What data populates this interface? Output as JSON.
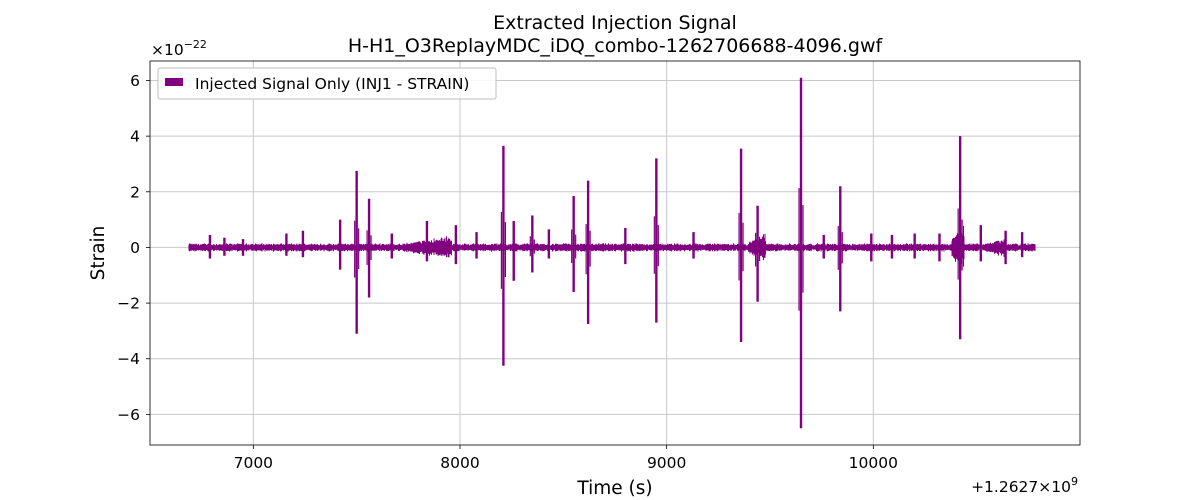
{
  "chart_data": {
    "type": "line",
    "title": "Extracted Injection Signal",
    "subtitle": "H-H1_O3ReplayMDC_iDQ_combo-1262706688-4096.gwf",
    "xlabel": "Time (s)",
    "ylabel": "Strain",
    "x_offset_label": "+1.2627×10",
    "x_offset_exponent": "9",
    "y_scale_label": "×10",
    "y_scale_exponent": "−22",
    "xlim": [
      6500,
      11000
    ],
    "ylim": [
      -7.1,
      6.7
    ],
    "x_ticks": [
      7000,
      8000,
      9000,
      10000
    ],
    "x_tick_labels": [
      "7000",
      "8000",
      "9000",
      "10000"
    ],
    "y_ticks": [
      -6,
      -4,
      -2,
      0,
      2,
      4,
      6
    ],
    "y_tick_labels": [
      "−6",
      "−4",
      "−2",
      "0",
      "2",
      "4",
      "6"
    ],
    "grid": true,
    "legend_position": "top-left",
    "x_range": [
      6688,
      10784
    ],
    "base_amplitude": 0.13,
    "series": [
      {
        "name": "Injected Signal Only (INJ1 - STRAIN)",
        "color": "#800080",
        "spikes": [
          {
            "x": 6790,
            "hi": 0.45,
            "lo": -0.4
          },
          {
            "x": 6860,
            "hi": 0.35,
            "lo": -0.3
          },
          {
            "x": 6950,
            "hi": 0.3,
            "lo": -0.3
          },
          {
            "x": 7160,
            "hi": 0.5,
            "lo": -0.3
          },
          {
            "x": 7240,
            "hi": 0.6,
            "lo": -0.35
          },
          {
            "x": 7420,
            "hi": 1.0,
            "lo": -0.8
          },
          {
            "x": 7500,
            "hi": 2.75,
            "lo": -3.1
          },
          {
            "x": 7560,
            "hi": 1.75,
            "lo": -1.8
          },
          {
            "x": 7670,
            "hi": 0.5,
            "lo": -0.4
          },
          {
            "x": 7840,
            "hi": 0.95,
            "lo": -0.5
          },
          {
            "x": 7980,
            "hi": 0.8,
            "lo": -0.6
          },
          {
            "x": 8080,
            "hi": 0.55,
            "lo": -0.4
          },
          {
            "x": 8210,
            "hi": 3.65,
            "lo": -4.25
          },
          {
            "x": 8260,
            "hi": 0.95,
            "lo": -1.2
          },
          {
            "x": 8350,
            "hi": 1.15,
            "lo": -0.9
          },
          {
            "x": 8430,
            "hi": 0.65,
            "lo": -0.4
          },
          {
            "x": 8550,
            "hi": 1.85,
            "lo": -1.6
          },
          {
            "x": 8620,
            "hi": 2.4,
            "lo": -2.75
          },
          {
            "x": 8800,
            "hi": 0.7,
            "lo": -0.6
          },
          {
            "x": 8950,
            "hi": 3.2,
            "lo": -2.7
          },
          {
            "x": 9130,
            "hi": 0.55,
            "lo": -0.4
          },
          {
            "x": 9360,
            "hi": 3.55,
            "lo": -3.4
          },
          {
            "x": 9440,
            "hi": 1.5,
            "lo": -1.95
          },
          {
            "x": 9650,
            "hi": 6.1,
            "lo": -6.5
          },
          {
            "x": 9760,
            "hi": 0.45,
            "lo": -0.4
          },
          {
            "x": 9840,
            "hi": 2.2,
            "lo": -2.3
          },
          {
            "x": 9990,
            "hi": 0.5,
            "lo": -0.5
          },
          {
            "x": 10090,
            "hi": 0.45,
            "lo": -0.4
          },
          {
            "x": 10200,
            "hi": 0.5,
            "lo": -0.4
          },
          {
            "x": 10320,
            "hi": 0.5,
            "lo": -0.5
          },
          {
            "x": 10420,
            "hi": 4.0,
            "lo": -3.3
          },
          {
            "x": 10520,
            "hi": 0.8,
            "lo": -0.5
          },
          {
            "x": 10640,
            "hi": 0.6,
            "lo": -0.6
          },
          {
            "x": 10720,
            "hi": 0.55,
            "lo": -0.35
          }
        ],
        "bursts": [
          {
            "x0": 7740,
            "x1": 7960,
            "amp": 0.45
          },
          {
            "x0": 9400,
            "x1": 9480,
            "amp": 0.55
          },
          {
            "x0": 10380,
            "x1": 10440,
            "amp": 0.9
          },
          {
            "x0": 10540,
            "x1": 10640,
            "amp": 0.4
          }
        ]
      }
    ]
  }
}
